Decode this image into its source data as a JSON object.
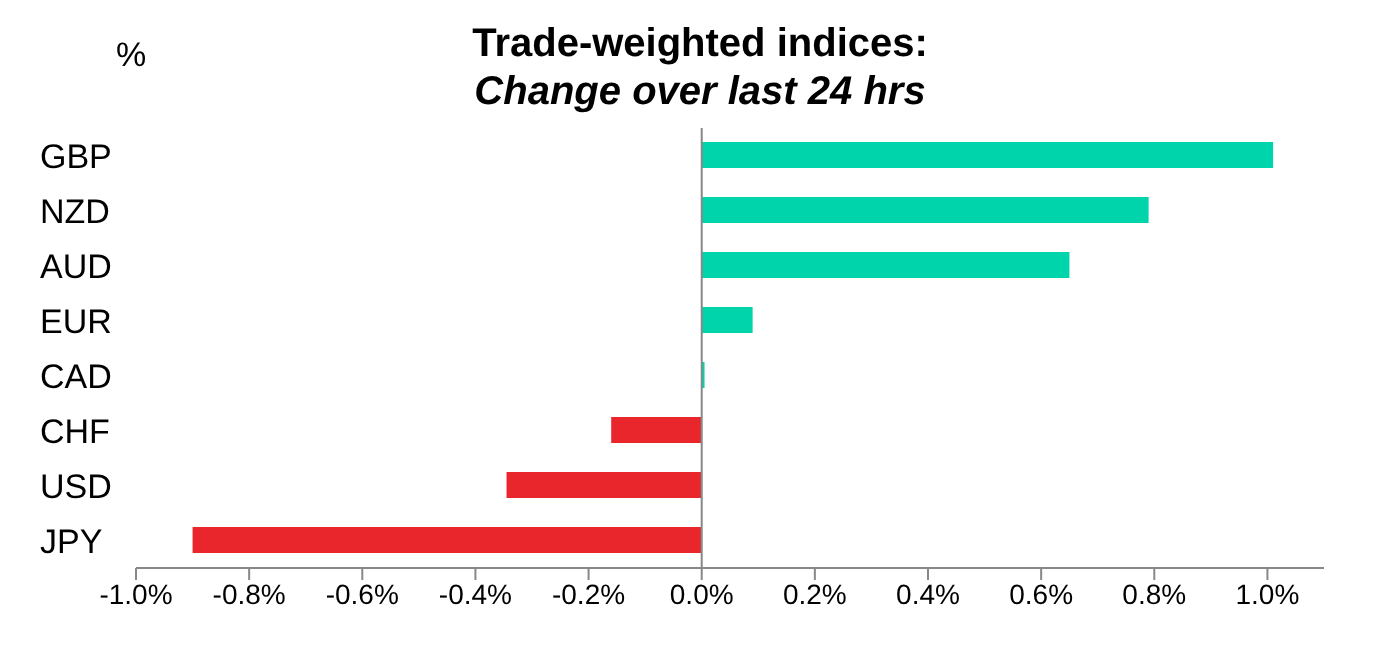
{
  "chart_data": {
    "type": "bar",
    "orientation": "horizontal",
    "title": "Trade-weighted indices:",
    "subtitle": "Change over last 24 hrs",
    "annotations": [
      "%"
    ],
    "categories": [
      "GBP",
      "NZD",
      "AUD",
      "EUR",
      "CAD",
      "CHF",
      "USD",
      "JPY"
    ],
    "values": [
      1.01,
      0.79,
      0.65,
      0.09,
      0.005,
      -0.16,
      -0.345,
      -0.9
    ],
    "colors": [
      "#00d4aa",
      "#00d4aa",
      "#00d4aa",
      "#00d4aa",
      "#00d4aa",
      "#e8262b",
      "#e8262b",
      "#e8262b"
    ],
    "xlim": [
      -1.0,
      1.1
    ],
    "xticks": [
      {
        "value": -1.0,
        "label": "-1.0%"
      },
      {
        "value": -0.8,
        "label": "-0.8%"
      },
      {
        "value": -0.6,
        "label": "-0.6%"
      },
      {
        "value": -0.4,
        "label": "-0.4%"
      },
      {
        "value": -0.2,
        "label": "-0.2%"
      },
      {
        "value": 0,
        "label": "0.0%"
      },
      {
        "value": 0.2,
        "label": "0.2%"
      },
      {
        "value": 0.4,
        "label": "0.4%"
      },
      {
        "value": 0.6,
        "label": "0.6%"
      },
      {
        "value": 0.8,
        "label": "0.8%"
      },
      {
        "value": 1.0,
        "label": "1.0%"
      }
    ],
    "ref_lines": [
      {
        "axis": "x",
        "value": 0,
        "color": "#888888"
      }
    ],
    "legend": false
  }
}
